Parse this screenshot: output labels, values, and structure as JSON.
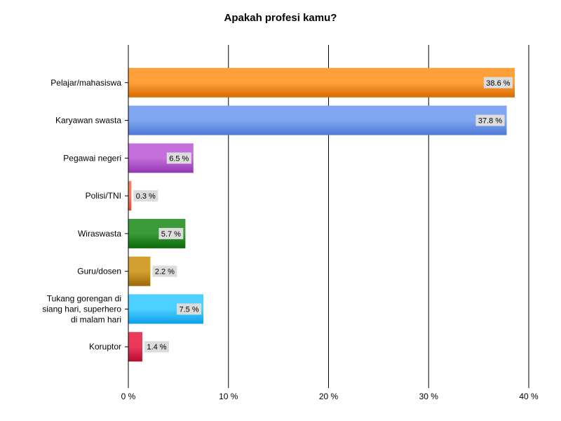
{
  "chart_data": {
    "type": "bar",
    "orientation": "horizontal",
    "title": "Apakah profesi kamu?",
    "xlabel": "",
    "ylabel": "",
    "xlim": [
      0,
      40
    ],
    "grid": true,
    "x_ticks": [
      {
        "value": 0,
        "label": "0 %"
      },
      {
        "value": 10,
        "label": "10 %"
      },
      {
        "value": 20,
        "label": "20 %"
      },
      {
        "value": 30,
        "label": "30 %"
      },
      {
        "value": 40,
        "label": "40 %"
      }
    ],
    "categories": [
      "Pelajar/mahasiswa",
      "Karyawan swasta",
      "Pegawai negeri",
      "Polisi/TNI",
      "Wiraswasta",
      "Guru/dosen",
      "Tukang gorengan di siang hari, superhero di malam hari",
      "Koruptor"
    ],
    "category_lines": [
      [
        "Pelajar/mahasiswa"
      ],
      [
        "Karyawan swasta"
      ],
      [
        "Pegawai negeri"
      ],
      [
        "Polisi/TNI"
      ],
      [
        "Wiraswasta"
      ],
      [
        "Guru/dosen"
      ],
      [
        "Tukang gorengan di",
        "siang hari, superhero",
        "di malam hari"
      ],
      [
        "Koruptor"
      ]
    ],
    "values": [
      38.6,
      37.8,
      6.5,
      0.3,
      5.7,
      2.2,
      7.5,
      1.4
    ],
    "value_labels": [
      "38.6 %",
      "37.8 %",
      "6.5 %",
      "0.3 %",
      "5.7 %",
      "2.2 %",
      "7.5 %",
      "1.4 %"
    ],
    "colors": [
      {
        "light": "#ffa03a",
        "dark": "#d86a00"
      },
      {
        "light": "#7fa6ee",
        "dark": "#4d77d8"
      },
      {
        "light": "#c46fdc",
        "dark": "#9236b2"
      },
      {
        "light": "#ff7a60",
        "dark": "#e0482c"
      },
      {
        "light": "#3a9a3a",
        "dark": "#0a6a0a"
      },
      {
        "light": "#d2a030",
        "dark": "#9c6a08"
      },
      {
        "light": "#4cd0ff",
        "dark": "#0aa0e8"
      },
      {
        "light": "#ea3a5a",
        "dark": "#b80c30"
      }
    ]
  }
}
